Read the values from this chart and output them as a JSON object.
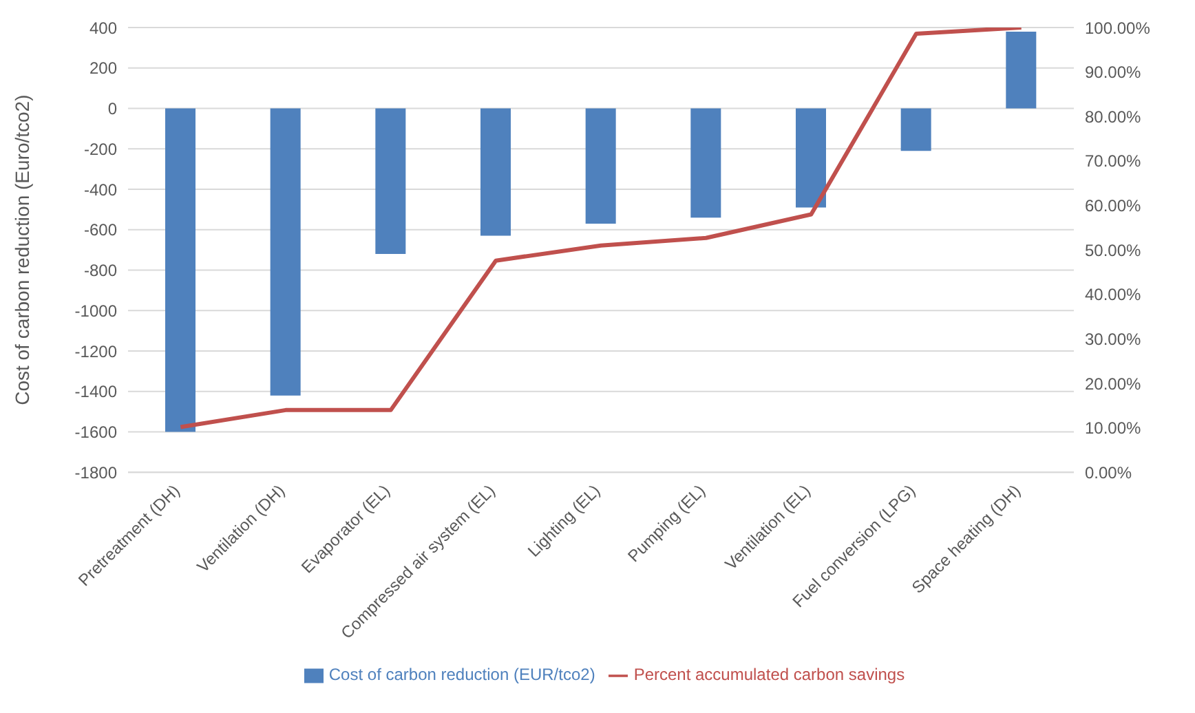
{
  "chart_data": {
    "type": "bar",
    "ylabel": "Cost of carbon reduction (Euro/tco2)",
    "categories": [
      "Pretreatment (DH)",
      "Ventilation (DH)",
      "Evaporator (EL)",
      "Compressed air system (EL)",
      "Lighting (EL)",
      "Pumping (EL)",
      "Ventilation (EL)",
      "Fuel conversion (LPG)",
      "Space heating (DH)"
    ],
    "series": [
      {
        "name": "Cost of carbon reduction (EUR/tco2)",
        "color": "#4f81bd",
        "values": [
          -1600,
          -1420,
          -720,
          -630,
          -570,
          -540,
          -490,
          -210,
          380
        ]
      },
      {
        "name": "Percent accumulated carbon savings",
        "type": "line",
        "axis": "y2",
        "color": "#c0504d",
        "values": [
          10.2,
          14,
          14,
          47.6,
          51,
          52.7,
          58,
          98.6,
          100
        ]
      }
    ],
    "ylim": [
      -1800,
      400
    ],
    "yticks": [
      -1800,
      -1600,
      -1400,
      -1200,
      -1000,
      -800,
      -600,
      -400,
      -200,
      0,
      200,
      400
    ],
    "y2lim": [
      0,
      100
    ],
    "y2ticks": [
      {
        "value": 0,
        "label": "0.00%"
      },
      {
        "value": 10,
        "label": "10.00%"
      },
      {
        "value": 20,
        "label": "20.00%"
      },
      {
        "value": 30,
        "label": "30.00%"
      },
      {
        "value": 40,
        "label": "40.00%"
      },
      {
        "value": 50,
        "label": "50.00%"
      },
      {
        "value": 60,
        "label": "60.00%"
      },
      {
        "value": 70,
        "label": "70.00%"
      },
      {
        "value": 80,
        "label": "80.00%"
      },
      {
        "value": 90,
        "label": "90.00%"
      },
      {
        "value": 100,
        "label": "100.00%"
      }
    ],
    "grid": "y",
    "legend": "bottom",
    "marker": "none"
  }
}
